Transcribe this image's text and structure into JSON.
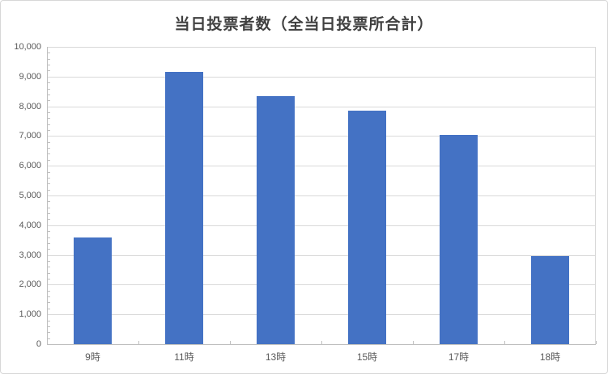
{
  "chart_data": {
    "type": "bar",
    "title": "当日投票者数（全当日投票所合計）",
    "categories": [
      "9時",
      "11時",
      "13時",
      "15時",
      "17時",
      "18時"
    ],
    "values": [
      3600,
      9150,
      8350,
      7850,
      7050,
      2950
    ],
    "xlabel": "",
    "ylabel": "",
    "ylim": [
      0,
      10000
    ],
    "y_tick_interval": 1000,
    "y_minor_tick_interval": 200,
    "y_tick_labels": [
      "0",
      "1,000",
      "2,000",
      "3,000",
      "4,000",
      "5,000",
      "6,000",
      "7,000",
      "8,000",
      "9,000",
      "10,000"
    ],
    "grid": true,
    "legend": false,
    "colors": {
      "bar": "#4472C4",
      "gridline": "#D9D9D9",
      "axis": "#BFBFBF",
      "tick_label": "#595959",
      "title": "#404040"
    }
  }
}
